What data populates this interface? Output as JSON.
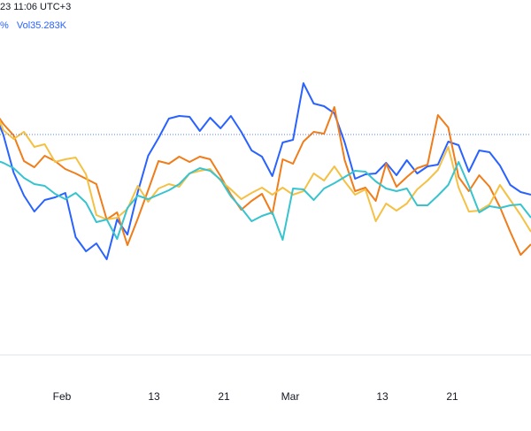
{
  "header": {
    "timestamp": "23 11:06 UTC+3",
    "volume_pct": "%",
    "volume_label": "Vol",
    "volume_value": "35.283K"
  },
  "chart_data": {
    "type": "line",
    "x_tick_labels": [
      "Feb",
      "13",
      "21",
      "Mar",
      "13",
      "21"
    ],
    "grid": false,
    "reference_line": "dotted horizontal at the latest value",
    "series": [
      {
        "color": "#2962ff",
        "values": [
          220,
          217,
          209,
          187,
          172,
          170,
          194,
          164,
          160,
          186,
          188,
          196,
          181,
          198,
          184,
          196,
          197,
          202,
          161,
          128,
          120,
          117,
          94,
          158,
          161,
          199,
          177,
          170,
          149,
          131,
          145,
          133,
          148,
          132,
          131,
          134,
          156,
          176,
          217,
          265,
          248,
          293,
          275,
          284,
          268,
          218,
          223,
          226,
          239,
          221,
          195,
          152,
          124
        ]
      },
      {
        "color": "#f07c1a",
        "values": [
          276,
          288,
          262,
          234,
          211,
          198,
          216,
          200,
          144,
          130,
          186,
          190,
          200,
          211,
          185,
          227,
          212,
          216,
          181,
          121,
          151,
          149,
          160,
          185,
          180,
          242,
          219,
          227,
          237,
          220,
          199,
          180,
          177,
          183,
          177,
          185,
          182,
          215,
          247,
          277,
          240,
          248,
          208,
          202,
          196,
          191,
          182,
          176,
          189,
          182,
          153,
          140,
          123
        ]
      },
      {
        "color": "#f5c144",
        "values": [
          262,
          243,
          226,
          209,
          231,
          238,
          239,
          212,
          166,
          192,
          204,
          214,
          230,
          238,
          230,
          250,
          214,
          220,
          205,
          188,
          204,
          196,
          216,
          220,
          212,
          220,
          212,
          218,
          225,
          214,
          204,
          191,
          193,
          196,
          211,
          208,
          213,
          228,
          210,
          236,
          246,
          248,
          243,
          197,
          178,
          180,
          183,
          163,
          166,
          149,
          157,
          147,
          117
        ]
      },
      {
        "color": "#37c4cf",
        "values": [
          246,
          231,
          232,
          235,
          233,
          240,
          210,
          183,
          209,
          221,
          232,
          232,
          213,
          216,
          213,
          205,
          194,
          193,
          200,
          207,
          213,
          226,
          214,
          213,
          271,
          240,
          244,
          250,
          235,
          222,
          203,
          193,
          190,
          196,
          208,
          215,
          220,
          225,
          221,
          235,
          270,
          248,
          251,
          229,
          218,
          225,
          219,
          210,
          208,
          201,
          190,
          184,
          180
        ]
      }
    ]
  }
}
